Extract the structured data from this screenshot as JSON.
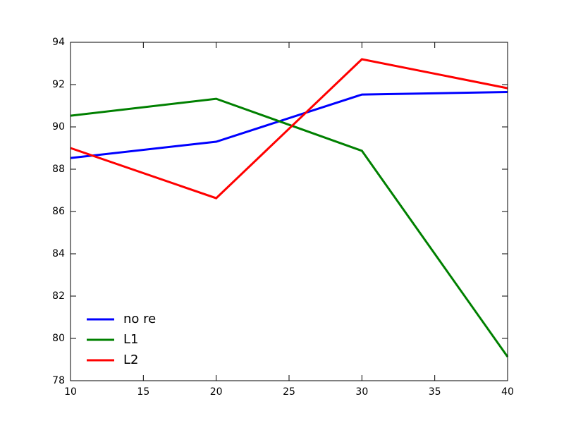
{
  "chart_data": {
    "type": "line",
    "x": [
      10,
      20,
      30,
      40
    ],
    "series": [
      {
        "name": "no re",
        "color": "#0000ff",
        "values": [
          88.53,
          89.3,
          91.53,
          91.65
        ]
      },
      {
        "name": "L1",
        "color": "#008000",
        "values": [
          90.53,
          91.33,
          88.87,
          79.13
        ]
      },
      {
        "name": "L2",
        "color": "#ff0000",
        "values": [
          89.0,
          86.63,
          93.2,
          91.83
        ]
      }
    ],
    "xlim": [
      10,
      40
    ],
    "xticks": [
      10,
      15,
      20,
      25,
      30,
      35,
      40
    ],
    "ylim": [
      78,
      94
    ],
    "yticks": [
      78,
      80,
      82,
      84,
      86,
      88,
      90,
      92,
      94
    ],
    "grid": false,
    "legend": "lower left"
  }
}
